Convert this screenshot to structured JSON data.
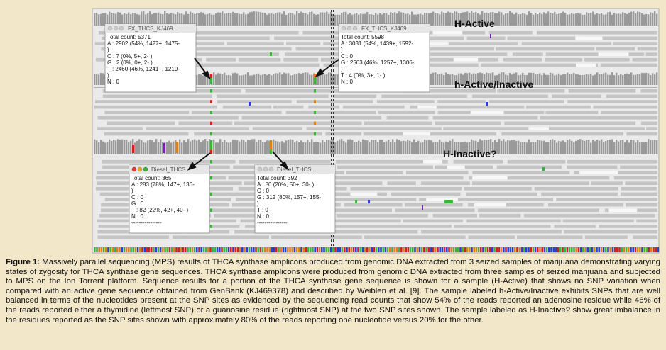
{
  "labels": {
    "h_active": "H-Active",
    "h_active_inactive": "h-Active/Inactive",
    "h_inactive": "H-Inactive?"
  },
  "popups": [
    {
      "title": "FX_THCS_KJ469...",
      "lines": [
        "Total count: 5371",
        "A : 2902 (54%, 1427+, 1475-",
        ")",
        "C : 7 (0%, 5+, 2- )",
        "G : 2 (0%, 0+, 2- )",
        "T : 2460 (46%, 1241+, 1219-",
        ")",
        "N : 0"
      ]
    },
    {
      "title": "FX_THCS_KJ469...",
      "lines": [
        "Total count: 5598",
        "A : 3031 (54%, 1439+, 1592-",
        ")",
        "C : 0",
        "G : 2563 (46%, 1257+, 1306-",
        ")",
        "T : 4 (0%, 3+, 1- )",
        "N : 0"
      ]
    },
    {
      "title": "Diesel_THCS...",
      "lines": [
        "Total count: 365",
        "A : 283 (78%, 147+, 136-",
        ")",
        "C : 0",
        "G : 0",
        "T : 82 (22%, 42+, 40- )",
        "N : 0",
        "----------------"
      ]
    },
    {
      "title": "Diesel_THCS...",
      "lines": [
        "Total count: 392",
        "A : 80 (20%, 50+, 30- )",
        "C : 0",
        "G : 312 (80%, 157+, 155-",
        ")",
        "T : 0",
        "N : 0",
        "----------------"
      ]
    }
  ],
  "caption": {
    "label": "Figure 1:",
    "text": " Massively parallel sequencing (MPS) results of THCA synthase amplicons produced from genomic DNA extracted from 3 seized samples of marijuana demonstrating varying states of zygosity for THCA synthase gene sequences. THCA synthase amplicons were produced from genomic DNA extracted from three samples of seized marijuana and subjected to MPS on the Ion Torrent platform. Sequence results for a portion of the THCA synthase gene sequence is shown for a sample (H-Active) that shows no SNP variation when compared with an active gene sequence obtained from GenBank (KJ469378) and described by Weiblen et al. [9]. The sample labeled h-Active/Inactive exhibits SNPs that are well balanced in terms of the nucleotides present at the SNP sites as evidenced by the sequencing read counts that show 54% of the reads reported an adenosine residue while 46% of the reads reported either a thymidine (leftmost SNP) or a guanosine residue (rightmost SNP) at the two SNP sites shown. The sample labeled as H-Inactive? show great imbalance in the residues reported as the SNP sites shown with approximately 80% of the reads reporting one nucleotide versus 20% for the other."
  },
  "colors": {
    "background": "#f3e7c9",
    "panel": "#eaeaea",
    "read": "#c4c4c4",
    "snp_A": "#3cb43c",
    "snp_T": "#d42020",
    "snp_G": "#d6831c",
    "snp_C": "#2a3fd0",
    "insertion": "#7a1fb0"
  }
}
